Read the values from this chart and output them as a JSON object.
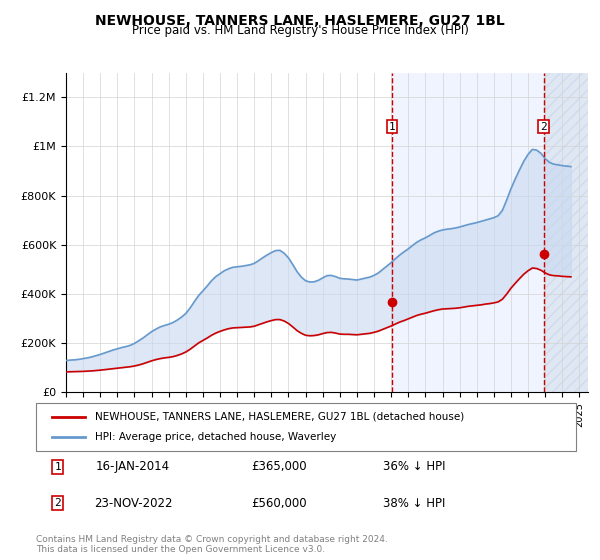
{
  "title": "NEWHOUSE, TANNERS LANE, HASLEMERE, GU27 1BL",
  "subtitle": "Price paid vs. HM Land Registry's House Price Index (HPI)",
  "title_fontsize": 11,
  "subtitle_fontsize": 9.5,
  "xlim": [
    1995,
    2025.5
  ],
  "ylim": [
    0,
    1300000
  ],
  "yticks": [
    0,
    200000,
    400000,
    600000,
    800000,
    1000000,
    1200000
  ],
  "ytick_labels": [
    "£0",
    "£200K",
    "£400K",
    "£600K",
    "£800K",
    "£1M",
    "£1.2M"
  ],
  "sale1_year": 2014.04,
  "sale1_price": 365000,
  "sale1_label": "16-JAN-2014",
  "sale1_pct": "36% ↓ HPI",
  "sale2_year": 2022.9,
  "sale2_price": 560000,
  "sale2_label": "23-NOV-2022",
  "sale2_pct": "38% ↓ HPI",
  "red_color": "#cc0000",
  "blue_color": "#6699cc",
  "hpi_years": [
    1995.0,
    1995.25,
    1995.5,
    1995.75,
    1996.0,
    1996.25,
    1996.5,
    1996.75,
    1997.0,
    1997.25,
    1997.5,
    1997.75,
    1998.0,
    1998.25,
    1998.5,
    1998.75,
    1999.0,
    1999.25,
    1999.5,
    1999.75,
    2000.0,
    2000.25,
    2000.5,
    2000.75,
    2001.0,
    2001.25,
    2001.5,
    2001.75,
    2002.0,
    2002.25,
    2002.5,
    2002.75,
    2003.0,
    2003.25,
    2003.5,
    2003.75,
    2004.0,
    2004.25,
    2004.5,
    2004.75,
    2005.0,
    2005.25,
    2005.5,
    2005.75,
    2006.0,
    2006.25,
    2006.5,
    2006.75,
    2007.0,
    2007.25,
    2007.5,
    2007.75,
    2008.0,
    2008.25,
    2008.5,
    2008.75,
    2009.0,
    2009.25,
    2009.5,
    2009.75,
    2010.0,
    2010.25,
    2010.5,
    2010.75,
    2011.0,
    2011.25,
    2011.5,
    2011.75,
    2012.0,
    2012.25,
    2012.5,
    2012.75,
    2013.0,
    2013.25,
    2013.5,
    2013.75,
    2014.0,
    2014.25,
    2014.5,
    2014.75,
    2015.0,
    2015.25,
    2015.5,
    2015.75,
    2016.0,
    2016.25,
    2016.5,
    2016.75,
    2017.0,
    2017.25,
    2017.5,
    2017.75,
    2018.0,
    2018.25,
    2018.5,
    2018.75,
    2019.0,
    2019.25,
    2019.5,
    2019.75,
    2020.0,
    2020.25,
    2020.5,
    2020.75,
    2021.0,
    2021.25,
    2021.5,
    2021.75,
    2022.0,
    2022.25,
    2022.5,
    2022.75,
    2023.0,
    2023.25,
    2023.5,
    2023.75,
    2024.0,
    2024.25,
    2024.5
  ],
  "hpi_values": [
    128000,
    130000,
    131000,
    133000,
    136000,
    139000,
    143000,
    148000,
    153000,
    159000,
    165000,
    171000,
    176000,
    181000,
    185000,
    190000,
    198000,
    209000,
    220000,
    233000,
    246000,
    256000,
    265000,
    271000,
    276000,
    283000,
    293000,
    305000,
    320000,
    342000,
    368000,
    393000,
    412000,
    432000,
    453000,
    470000,
    482000,
    494000,
    502000,
    508000,
    510000,
    512000,
    515000,
    518000,
    524000,
    535000,
    547000,
    558000,
    568000,
    576000,
    577000,
    565000,
    546000,
    519000,
    490000,
    468000,
    453000,
    448000,
    449000,
    455000,
    465000,
    474000,
    475000,
    470000,
    463000,
    461000,
    460000,
    458000,
    456000,
    460000,
    464000,
    468000,
    475000,
    485000,
    499000,
    513000,
    527000,
    543000,
    558000,
    571000,
    583000,
    597000,
    610000,
    620000,
    628000,
    638000,
    648000,
    655000,
    660000,
    663000,
    665000,
    668000,
    672000,
    677000,
    682000,
    686000,
    690000,
    695000,
    700000,
    705000,
    710000,
    718000,
    740000,
    782000,
    828000,
    868000,
    905000,
    940000,
    968000,
    988000,
    985000,
    972000,
    950000,
    935000,
    928000,
    925000,
    922000,
    920000,
    918000
  ],
  "red_years": [
    1995.0,
    1995.25,
    1995.5,
    1995.75,
    1996.0,
    1996.25,
    1996.5,
    1996.75,
    1997.0,
    1997.25,
    1997.5,
    1997.75,
    1998.0,
    1998.25,
    1998.5,
    1998.75,
    1999.0,
    1999.25,
    1999.5,
    1999.75,
    2000.0,
    2000.25,
    2000.5,
    2000.75,
    2001.0,
    2001.25,
    2001.5,
    2001.75,
    2002.0,
    2002.25,
    2002.5,
    2002.75,
    2003.0,
    2003.25,
    2003.5,
    2003.75,
    2004.0,
    2004.25,
    2004.5,
    2004.75,
    2005.0,
    2005.25,
    2005.5,
    2005.75,
    2006.0,
    2006.25,
    2006.5,
    2006.75,
    2007.0,
    2007.25,
    2007.5,
    2007.75,
    2008.0,
    2008.25,
    2008.5,
    2008.75,
    2009.0,
    2009.25,
    2009.5,
    2009.75,
    2010.0,
    2010.25,
    2010.5,
    2010.75,
    2011.0,
    2011.25,
    2011.5,
    2011.75,
    2012.0,
    2012.25,
    2012.5,
    2012.75,
    2013.0,
    2013.25,
    2013.5,
    2013.75,
    2014.0,
    2014.25,
    2014.5,
    2014.75,
    2015.0,
    2015.25,
    2015.5,
    2015.75,
    2016.0,
    2016.25,
    2016.5,
    2016.75,
    2017.0,
    2017.25,
    2017.5,
    2017.75,
    2018.0,
    2018.25,
    2018.5,
    2018.75,
    2019.0,
    2019.25,
    2019.5,
    2019.75,
    2020.0,
    2020.25,
    2020.5,
    2020.75,
    2021.0,
    2021.25,
    2021.5,
    2021.75,
    2022.0,
    2022.25,
    2022.5,
    2022.75,
    2023.0,
    2023.25,
    2023.5,
    2023.75,
    2024.0,
    2024.25,
    2024.5
  ],
  "red_values": [
    82000,
    82500,
    83000,
    83500,
    84000,
    85000,
    86000,
    87500,
    89000,
    91000,
    93000,
    95000,
    97000,
    99000,
    101000,
    103000,
    106000,
    110000,
    115000,
    121000,
    127000,
    132000,
    136000,
    139000,
    141000,
    144000,
    149000,
    155000,
    163000,
    174000,
    187000,
    200000,
    210000,
    220000,
    231000,
    240000,
    247000,
    253000,
    258000,
    261000,
    262000,
    263000,
    264000,
    265000,
    268000,
    274000,
    280000,
    286000,
    291000,
    295000,
    295000,
    289000,
    279000,
    265000,
    250000,
    239000,
    231000,
    229000,
    230000,
    233000,
    238000,
    242000,
    243000,
    240000,
    236000,
    235000,
    235000,
    234000,
    233000,
    235000,
    237000,
    239000,
    243000,
    248000,
    255000,
    262000,
    269000,
    277000,
    285000,
    291000,
    298000,
    305000,
    312000,
    317000,
    321000,
    326000,
    331000,
    335000,
    338000,
    339000,
    340000,
    341000,
    343000,
    346000,
    349000,
    351000,
    353000,
    355000,
    358000,
    360000,
    363000,
    367000,
    378000,
    399000,
    423000,
    443000,
    462000,
    480000,
    494000,
    505000,
    503000,
    496000,
    485000,
    477000,
    474000,
    473000,
    471000,
    470000,
    469000
  ],
  "bg_color": "#f0f4ff",
  "hatch_color": "#c0d0e8",
  "legend_label_red": "NEWHOUSE, TANNERS LANE, HASLEMERE, GU27 1BL (detached house)",
  "legend_label_blue": "HPI: Average price, detached house, Waverley",
  "footer": "Contains HM Land Registry data © Crown copyright and database right 2024.\nThis data is licensed under the Open Government Licence v3.0."
}
